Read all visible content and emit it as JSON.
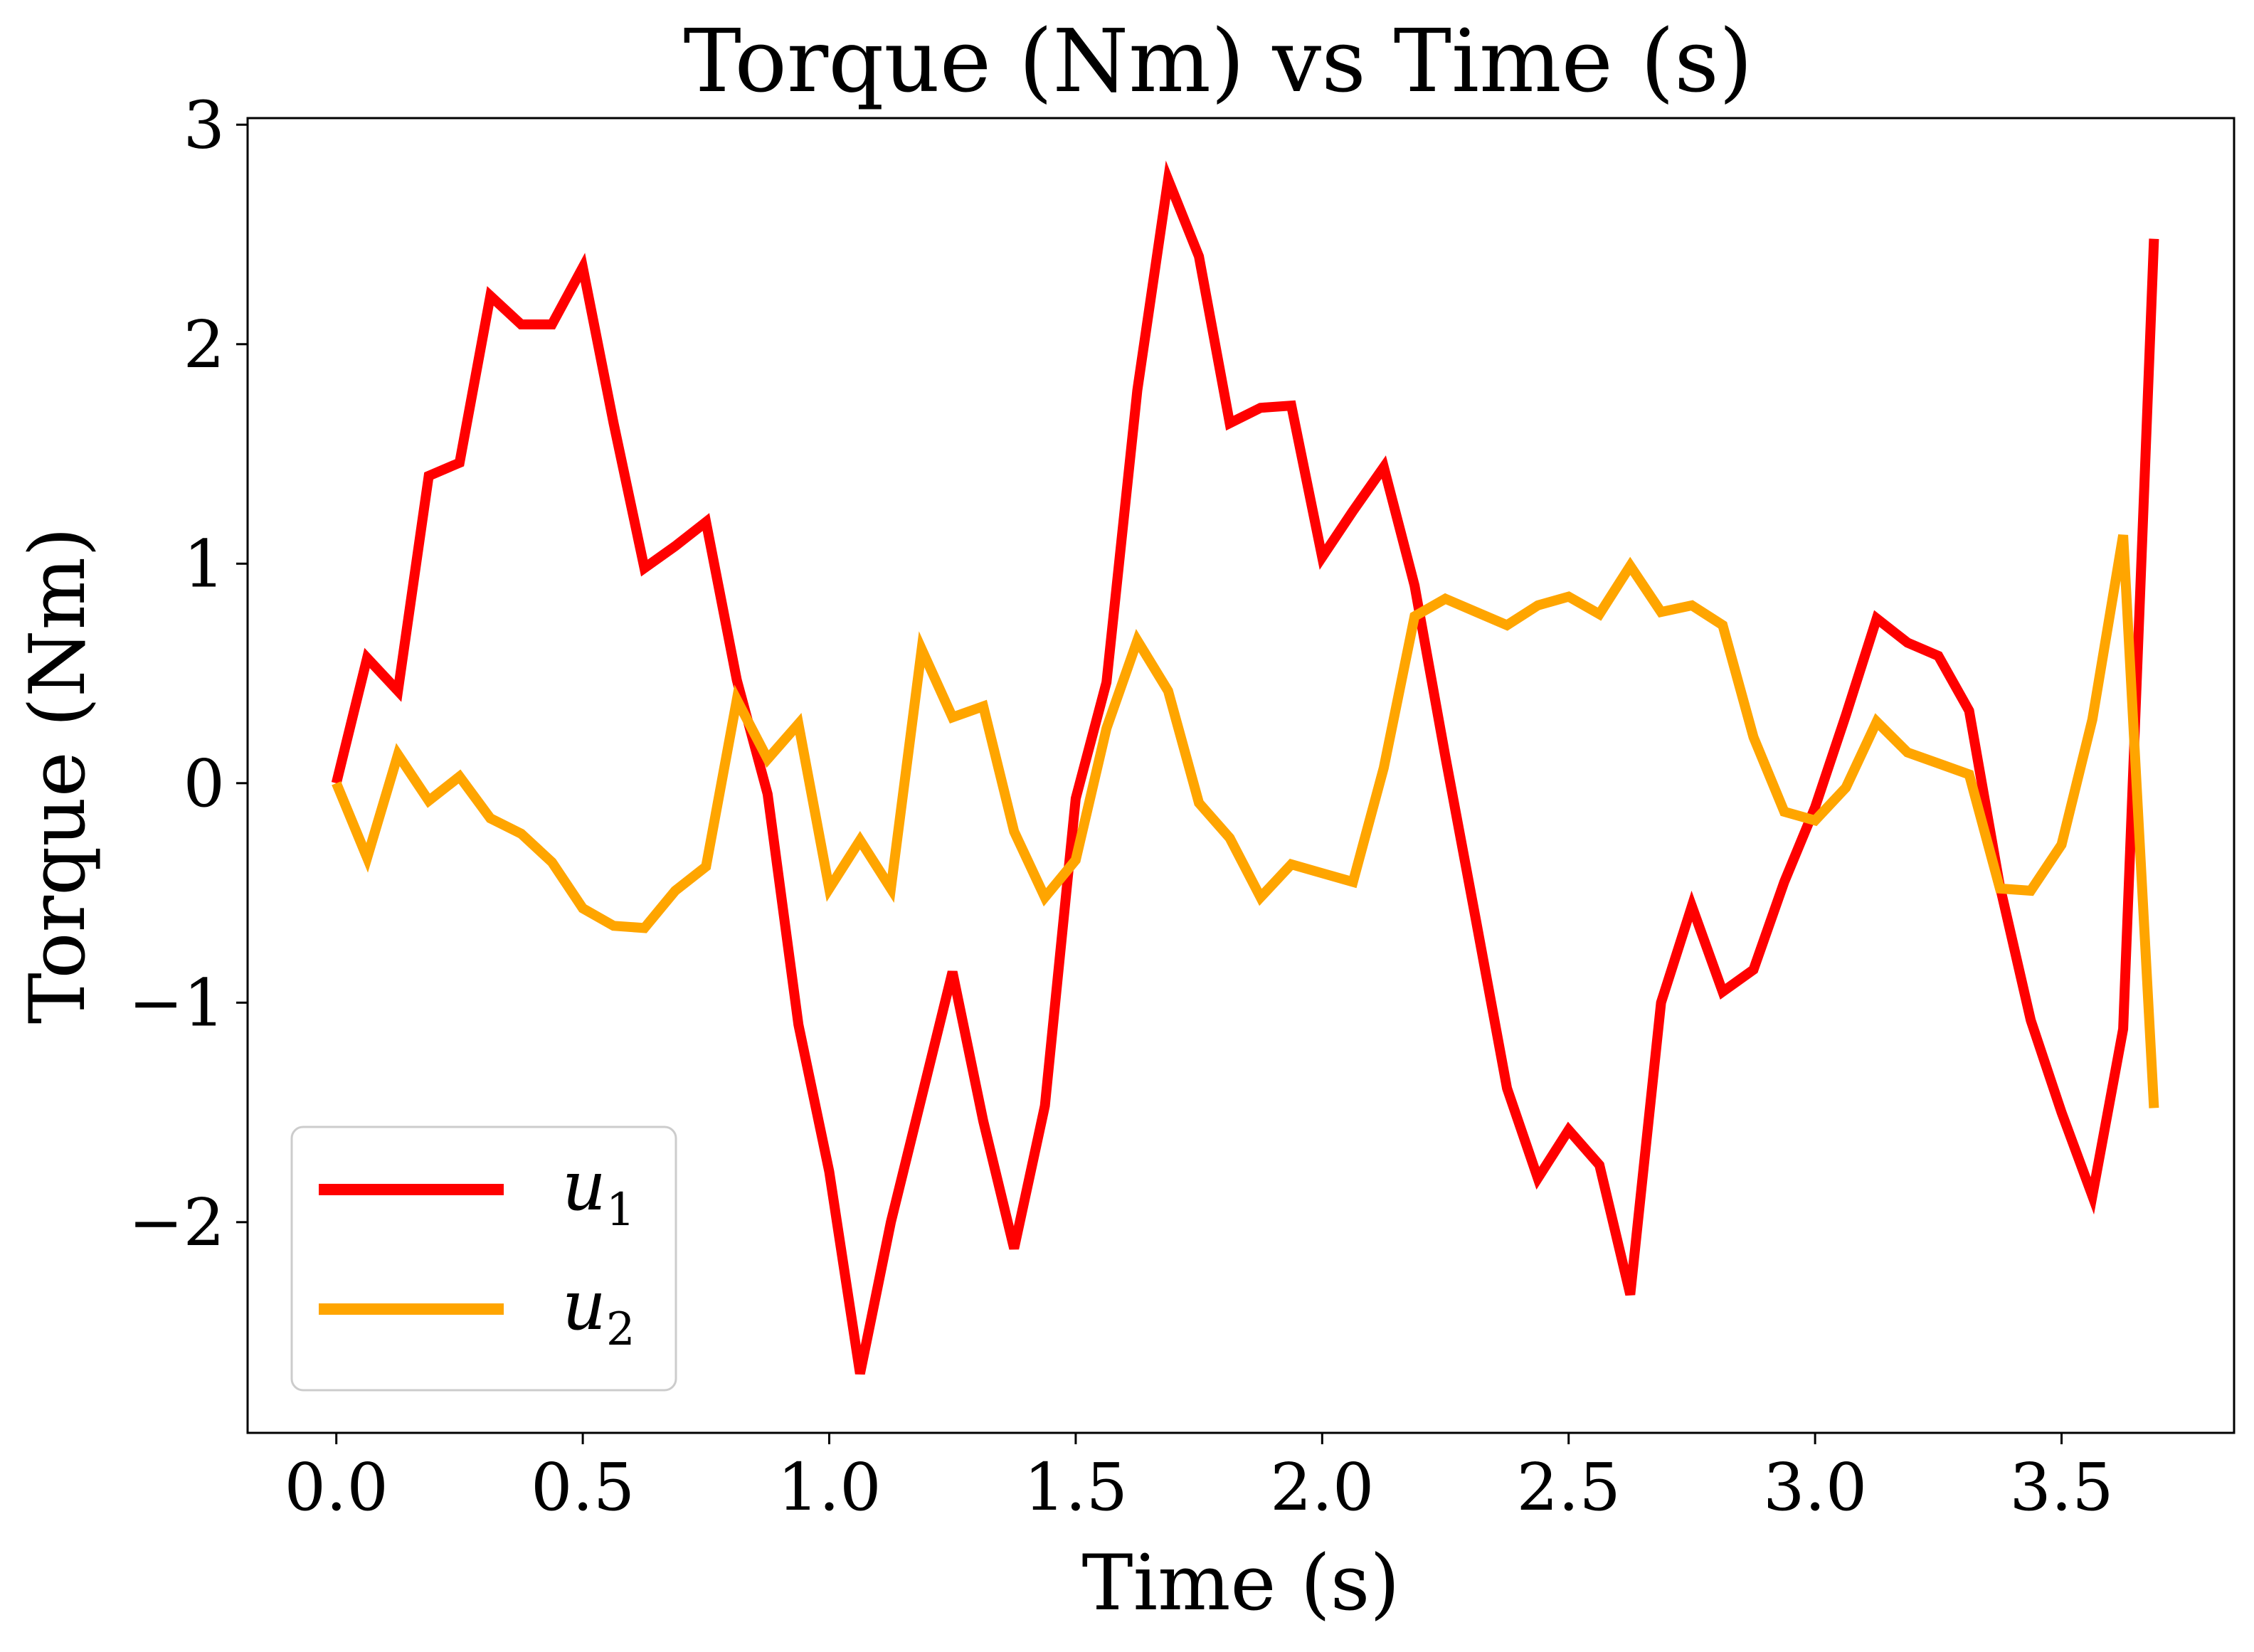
{
  "chart_data": {
    "type": "line",
    "title": "Torque (Nm) vs Time (s)",
    "xlabel": "Time (s)",
    "ylabel": "Torque (Nm)",
    "xlim": [
      -0.18,
      3.85
    ],
    "ylim": [
      -2.96,
      3.03
    ],
    "xticks": [
      0.0,
      0.5,
      1.0,
      1.5,
      2.0,
      2.5,
      3.0,
      3.5
    ],
    "xtick_labels": [
      "0.0",
      "0.5",
      "1.0",
      "1.5",
      "2.0",
      "2.5",
      "3.0",
      "3.5"
    ],
    "yticks": [
      3,
      2,
      1,
      0,
      -1,
      -2
    ],
    "ytick_labels": [
      "3",
      "2",
      "1",
      "0",
      "−1",
      "−2"
    ],
    "grid": false,
    "legend_position": "bottom-left",
    "x": [
      0.0,
      0.0625,
      0.125,
      0.1875,
      0.25,
      0.3125,
      0.375,
      0.4375,
      0.5,
      0.5625,
      0.625,
      0.6875,
      0.75,
      0.8125,
      0.875,
      0.9375,
      1.0,
      1.0625,
      1.125,
      1.1875,
      1.25,
      1.3125,
      1.375,
      1.4375,
      1.5,
      1.5625,
      1.625,
      1.6875,
      1.75,
      1.8125,
      1.875,
      1.9375,
      2.0,
      2.0625,
      2.125,
      2.1875,
      2.25,
      2.3125,
      2.375,
      2.4375,
      2.5,
      2.5625,
      2.625,
      2.6875,
      2.75,
      2.8125,
      2.875,
      2.9375,
      3.0,
      3.0625,
      3.125,
      3.1875,
      3.25,
      3.3125,
      3.375,
      3.4375,
      3.5,
      3.5625,
      3.625,
      3.6875
    ],
    "series": [
      {
        "name": "u_1",
        "label_base": "u",
        "label_sub": "1",
        "color": "#ff0000",
        "values": [
          0.0,
          0.57,
          0.42,
          1.4,
          1.46,
          2.22,
          2.09,
          2.09,
          2.35,
          1.64,
          0.98,
          1.08,
          1.19,
          0.47,
          -0.05,
          -1.1,
          -1.77,
          -2.69,
          -2.0,
          -1.43,
          -0.86,
          -1.54,
          -2.12,
          -1.47,
          -0.07,
          0.46,
          1.79,
          2.75,
          2.4,
          1.64,
          1.71,
          1.72,
          1.03,
          1.24,
          1.44,
          0.9,
          0.12,
          -0.63,
          -1.39,
          -1.8,
          -1.58,
          -1.74,
          -2.33,
          -1.0,
          -0.56,
          -0.95,
          -0.85,
          -0.45,
          -0.11,
          0.31,
          0.75,
          0.64,
          0.58,
          0.33,
          -0.47,
          -1.08,
          -1.5,
          -1.88,
          -1.12,
          2.48
        ]
      },
      {
        "name": "u_2",
        "label_base": "u",
        "label_sub": "2",
        "color": "#ffa500",
        "values": [
          0.0,
          -0.34,
          0.13,
          -0.08,
          0.03,
          -0.16,
          -0.23,
          -0.36,
          -0.57,
          -0.65,
          -0.66,
          -0.49,
          -0.38,
          0.38,
          0.11,
          0.27,
          -0.48,
          -0.26,
          -0.48,
          0.61,
          0.3,
          0.35,
          -0.22,
          -0.52,
          -0.35,
          0.25,
          0.65,
          0.42,
          -0.09,
          -0.25,
          -0.52,
          -0.37,
          -0.41,
          -0.45,
          0.07,
          0.76,
          0.84,
          0.78,
          0.72,
          0.81,
          0.85,
          0.77,
          0.99,
          0.78,
          0.81,
          0.72,
          0.21,
          -0.13,
          -0.17,
          -0.02,
          0.28,
          0.14,
          0.09,
          0.04,
          -0.48,
          -0.49,
          -0.28,
          0.29,
          1.13,
          -1.48
        ]
      }
    ]
  }
}
